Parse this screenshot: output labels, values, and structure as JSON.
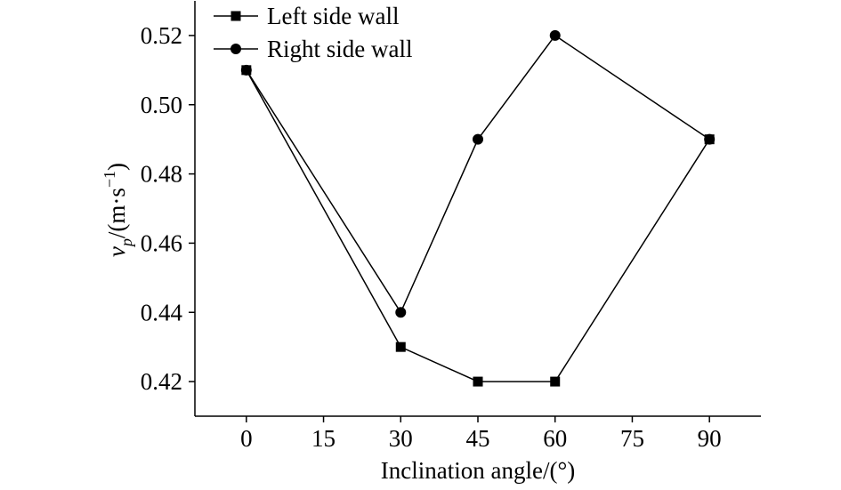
{
  "chart_data": {
    "type": "line",
    "x_label": "Inclination angle/(°)",
    "y_label": [
      "v",
      "p",
      "/(m·s",
      "−1",
      ")"
    ],
    "x": [
      0,
      30,
      45,
      60,
      90
    ],
    "series": [
      {
        "name": "Left side wall",
        "color": "#000000",
        "marker": "square",
        "values": [
          0.51,
          0.43,
          0.42,
          0.42,
          0.49
        ]
      },
      {
        "name": "Right side wall",
        "color": "#000000",
        "marker": "circle",
        "values": [
          0.51,
          0.44,
          0.49,
          0.52,
          0.49
        ]
      }
    ],
    "xlim": [
      -10,
      100
    ],
    "xticks": [
      0,
      15,
      30,
      45,
      60,
      75,
      90
    ],
    "ylim": [
      0.41,
      0.53
    ],
    "yticks": [
      0.42,
      0.44,
      0.46,
      0.48,
      {
        "value": 0.5,
        "label": "0.50"
      },
      0.52
    ],
    "legend": "upper-left",
    "grid": false
  }
}
